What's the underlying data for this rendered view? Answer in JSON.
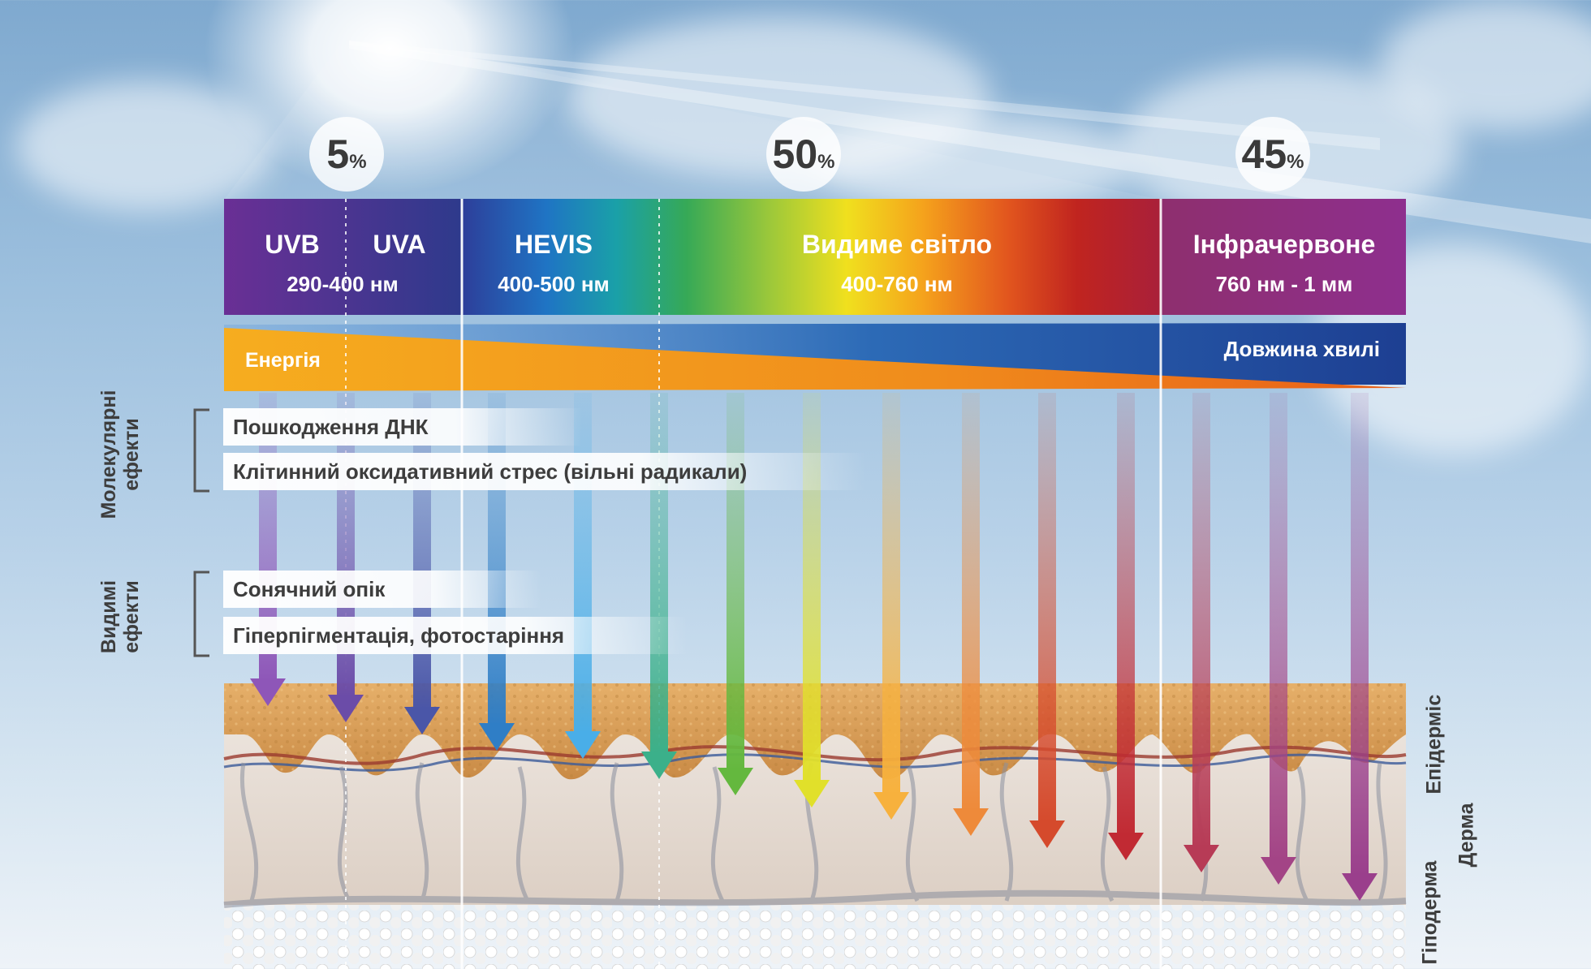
{
  "percentages": [
    {
      "value": "5",
      "unit": "%"
    },
    {
      "value": "50",
      "unit": "%"
    },
    {
      "value": "45",
      "unit": "%"
    }
  ],
  "bands": {
    "uvb": "UVB",
    "uva": "UVA",
    "uv_range": "290-400 нм",
    "hevis": "HEVIS",
    "hevis_range": "400-500 нм",
    "visible": "Видиме світло",
    "visible_range": "400-760 нм",
    "infrared": "Інфрачервоне",
    "infrared_range": "760 нм - 1 мм"
  },
  "scale": {
    "energy": "Енергія",
    "wavelength": "Довжина хвилі"
  },
  "effect_groups": {
    "molecular": "Молекулярні ефекти",
    "visible": "Видимі ефекти"
  },
  "effects": {
    "dna_damage": "Пошкодження ДНК",
    "oxidative_stress": "Клітинний оксидативний стрес (вільні радикали)",
    "sunburn": "Сонячний опік",
    "hyperpigmentation": "Гіперпігментація, фотостаріння"
  },
  "skin_layers": {
    "epidermis": "Епідерміс",
    "dermis": "Дерма",
    "hypodermis": "Гіподерма"
  },
  "colors": {
    "uv_purple": "#6a2f95",
    "uv_blue": "#2e3a8c",
    "energy_orange": "#f39a1e",
    "wavelength_blue": "#1d4f9e",
    "infrared_magenta": "#8e2f7e",
    "epidermis": "#d9a460",
    "dermis": "#e8ded6"
  }
}
